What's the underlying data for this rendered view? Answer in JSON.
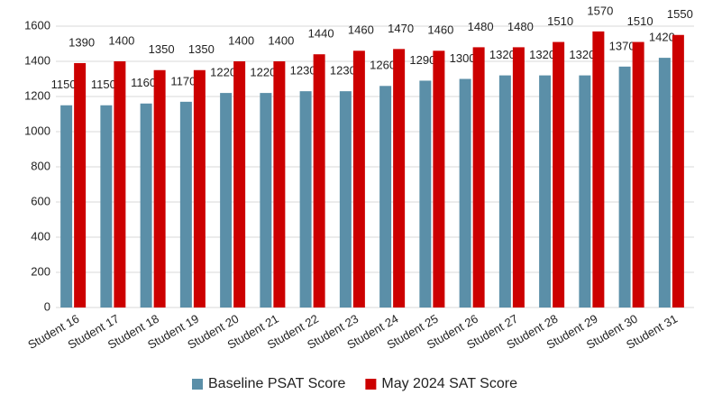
{
  "chart_data": {
    "type": "bar",
    "categories": [
      "Student 16",
      "Student 17",
      "Student 18",
      "Student 19",
      "Student 20",
      "Student 21",
      "Student 22",
      "Student 23",
      "Student 24",
      "Student 25",
      "Student 26",
      "Student 27",
      "Student 28",
      "Student 29",
      "Student 30",
      "Student 31"
    ],
    "series": [
      {
        "name": "Baseline PSAT Score",
        "color": "#5b8fa8",
        "values": [
          1150,
          1150,
          1160,
          1170,
          1220,
          1220,
          1230,
          1230,
          1260,
          1290,
          1300,
          1320,
          1320,
          1320,
          1370,
          1420
        ]
      },
      {
        "name": "May 2024 SAT Score",
        "color": "#cc0000",
        "values": [
          1390,
          1400,
          1350,
          1350,
          1400,
          1400,
          1440,
          1460,
          1470,
          1460,
          1480,
          1480,
          1510,
          1570,
          1510,
          1550
        ]
      }
    ],
    "ylim": [
      0,
      1600
    ],
    "yticks": [
      0,
      200,
      400,
      600,
      800,
      1000,
      1200,
      1400,
      1600
    ],
    "grid": true,
    "legend": "bottom"
  }
}
